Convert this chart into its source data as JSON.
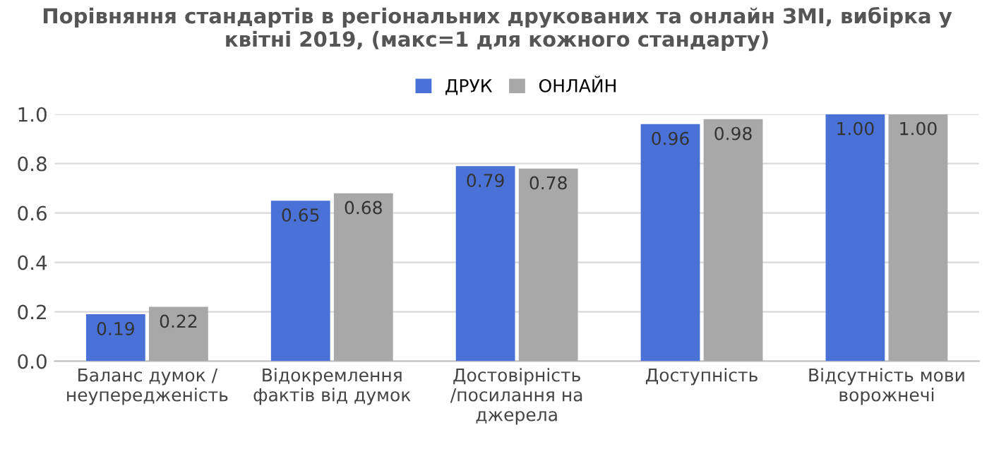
{
  "chart_data": {
    "type": "bar",
    "title": "Порівняння стандартів в регіональних друкованих та онлайн ЗМІ, вибірка у\nквітні 2019, (макс=1 для кожного стандарту)",
    "categories": [
      "Баланс думок /\nнеупередженість",
      "Відокремлення\nфактів від думок",
      "Достовірність\n/посилання на\nджерела",
      "Доступність",
      "Відсутність мови\nворожнечі"
    ],
    "series": [
      {
        "name": "ДРУК",
        "color": "#4a72d6",
        "values": [
          0.19,
          0.65,
          0.79,
          0.96,
          1.0
        ],
        "value_labels": [
          "0.19",
          "0.65",
          "0.79",
          "0.96",
          "1.00"
        ]
      },
      {
        "name": "ОНЛАЙН",
        "color": "#a8a8a8",
        "values": [
          0.22,
          0.68,
          0.78,
          0.98,
          1.0
        ],
        "value_labels": [
          "0.22",
          "0.68",
          "0.78",
          "0.98",
          "1.00"
        ]
      }
    ],
    "ylim": [
      0,
      1.0
    ],
    "yticks": [
      {
        "value": 0,
        "label": "0.0"
      },
      {
        "value": 0.2,
        "label": "0.2"
      },
      {
        "value": 0.4,
        "label": "0.4"
      },
      {
        "value": 0.6,
        "label": "0.6"
      },
      {
        "value": 0.8,
        "label": "0.8"
      },
      {
        "value": 1.0,
        "label": "1.0"
      }
    ],
    "grid": "y",
    "legend": "top"
  }
}
